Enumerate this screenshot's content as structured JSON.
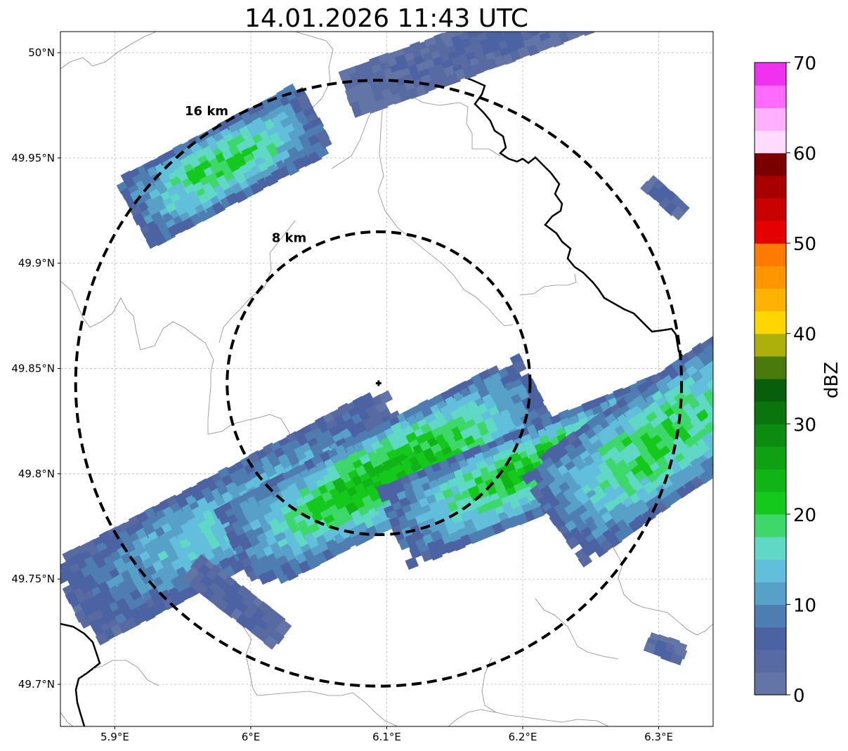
{
  "title": "14.01.2026 11:43 UTC",
  "map": {
    "lon_range": [
      5.86,
      6.34
    ],
    "lat_range": [
      49.68,
      50.01
    ],
    "lon_ticks": [
      {
        "value": 5.9,
        "label": "5.9°E"
      },
      {
        "value": 6.0,
        "label": "6°E"
      },
      {
        "value": 6.1,
        "label": "6.1°E"
      },
      {
        "value": 6.2,
        "label": "6.2°E"
      },
      {
        "value": 6.3,
        "label": "6.3°E"
      }
    ],
    "lat_ticks": [
      {
        "value": 50.0,
        "label": "50°N"
      },
      {
        "value": 49.95,
        "label": "49.95°N"
      },
      {
        "value": 49.9,
        "label": "49.9°N"
      },
      {
        "value": 49.85,
        "label": "49.85°N"
      },
      {
        "value": 49.8,
        "label": "49.8°N"
      },
      {
        "value": 49.75,
        "label": "49.75°N"
      },
      {
        "value": 49.7,
        "label": "49.7°N"
      }
    ],
    "gridlines": true,
    "radar_site": {
      "lon": 6.094,
      "lat": 49.843
    },
    "rings": [
      {
        "radius_km": 8,
        "label": "8 km"
      },
      {
        "radius_km": 16,
        "label": "16 km"
      }
    ]
  },
  "colorbar": {
    "label": "dBZ",
    "min": 0,
    "max": 70,
    "ticks": [
      "0",
      "10",
      "20",
      "30",
      "40",
      "50",
      "60",
      "70"
    ],
    "colors": [
      "#6374a6",
      "#576aa1",
      "#4b62a3",
      "#4e7db2",
      "#57a0c8",
      "#62bfdb",
      "#5fd8c6",
      "#3ed86a",
      "#14c91c",
      "#11b416",
      "#0ea112",
      "#0c8b10",
      "#0a740d",
      "#085f09",
      "#4a7a0c",
      "#adb00b",
      "#ffd600",
      "#ffb300",
      "#ff9600",
      "#ff7a00",
      "#e50000",
      "#c80000",
      "#a80000",
      "#7a0000",
      "#ffdcff",
      "#ffb0ff",
      "#ff6bff",
      "#f031f0"
    ]
  },
  "echoes": [
    {
      "name": "northwest-cell",
      "lon": 5.98,
      "lat": 49.947,
      "len_km": 11,
      "wid_km": 4,
      "angle": -28,
      "peak_dbz": 20
    },
    {
      "name": "north-edge-band",
      "lon": 6.175,
      "lat": 50.005,
      "len_km": 16,
      "wid_km": 2.5,
      "angle": -20,
      "peak_dbz": 5
    },
    {
      "name": "east-fleck",
      "lon": 6.305,
      "lat": 49.932,
      "len_km": 2.5,
      "wid_km": 0.8,
      "angle": 42,
      "peak_dbz": 6
    },
    {
      "name": "main-band-west",
      "lon": 5.99,
      "lat": 49.78,
      "len_km": 20,
      "wid_km": 5,
      "angle": -28,
      "peak_dbz": 15
    },
    {
      "name": "main-band-center",
      "lon": 6.1,
      "lat": 49.8,
      "len_km": 18,
      "wid_km": 5,
      "angle": -27,
      "peak_dbz": 23
    },
    {
      "name": "main-band-east",
      "lon": 6.22,
      "lat": 49.805,
      "len_km": 18,
      "wid_km": 4.5,
      "angle": -22,
      "peak_dbz": 22
    },
    {
      "name": "main-band-far-east",
      "lon": 6.3,
      "lat": 49.815,
      "len_km": 14,
      "wid_km": 6,
      "angle": -35,
      "peak_dbz": 20
    },
    {
      "name": "southwest-streak",
      "lon": 5.99,
      "lat": 49.74,
      "len_km": 6,
      "wid_km": 1.5,
      "angle": 38,
      "peak_dbz": 6
    },
    {
      "name": "southeast-fleck",
      "lon": 6.305,
      "lat": 49.718,
      "len_km": 2,
      "wid_km": 1,
      "angle": 20,
      "peak_dbz": 5
    }
  ]
}
